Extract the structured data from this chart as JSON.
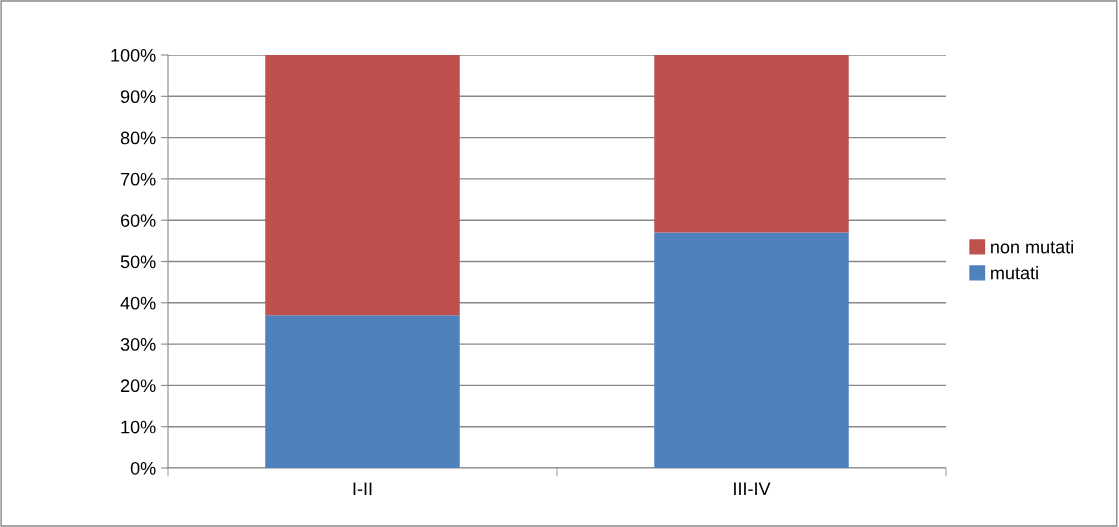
{
  "chart_data": {
    "type": "bar",
    "stacked": true,
    "categories": [
      "I-II",
      "III-IV"
    ],
    "series": [
      {
        "name": "mutati",
        "color": "#4f81bd",
        "values": [
          37,
          57
        ]
      },
      {
        "name": "non mutati",
        "color": "#c0504d",
        "values": [
          63,
          43
        ]
      }
    ],
    "ylim": [
      0,
      100
    ],
    "yticks": [
      {
        "value": 0,
        "label": "0%"
      },
      {
        "value": 10,
        "label": "10%"
      },
      {
        "value": 20,
        "label": "20%"
      },
      {
        "value": 30,
        "label": "30%"
      },
      {
        "value": 40,
        "label": "40%"
      },
      {
        "value": 50,
        "label": "50%"
      },
      {
        "value": 60,
        "label": "60%"
      },
      {
        "value": 70,
        "label": "70%"
      },
      {
        "value": 80,
        "label": "80%"
      },
      {
        "value": 90,
        "label": "90%"
      },
      {
        "value": 100,
        "label": "100%"
      }
    ],
    "grid": "y",
    "legend": "right"
  }
}
